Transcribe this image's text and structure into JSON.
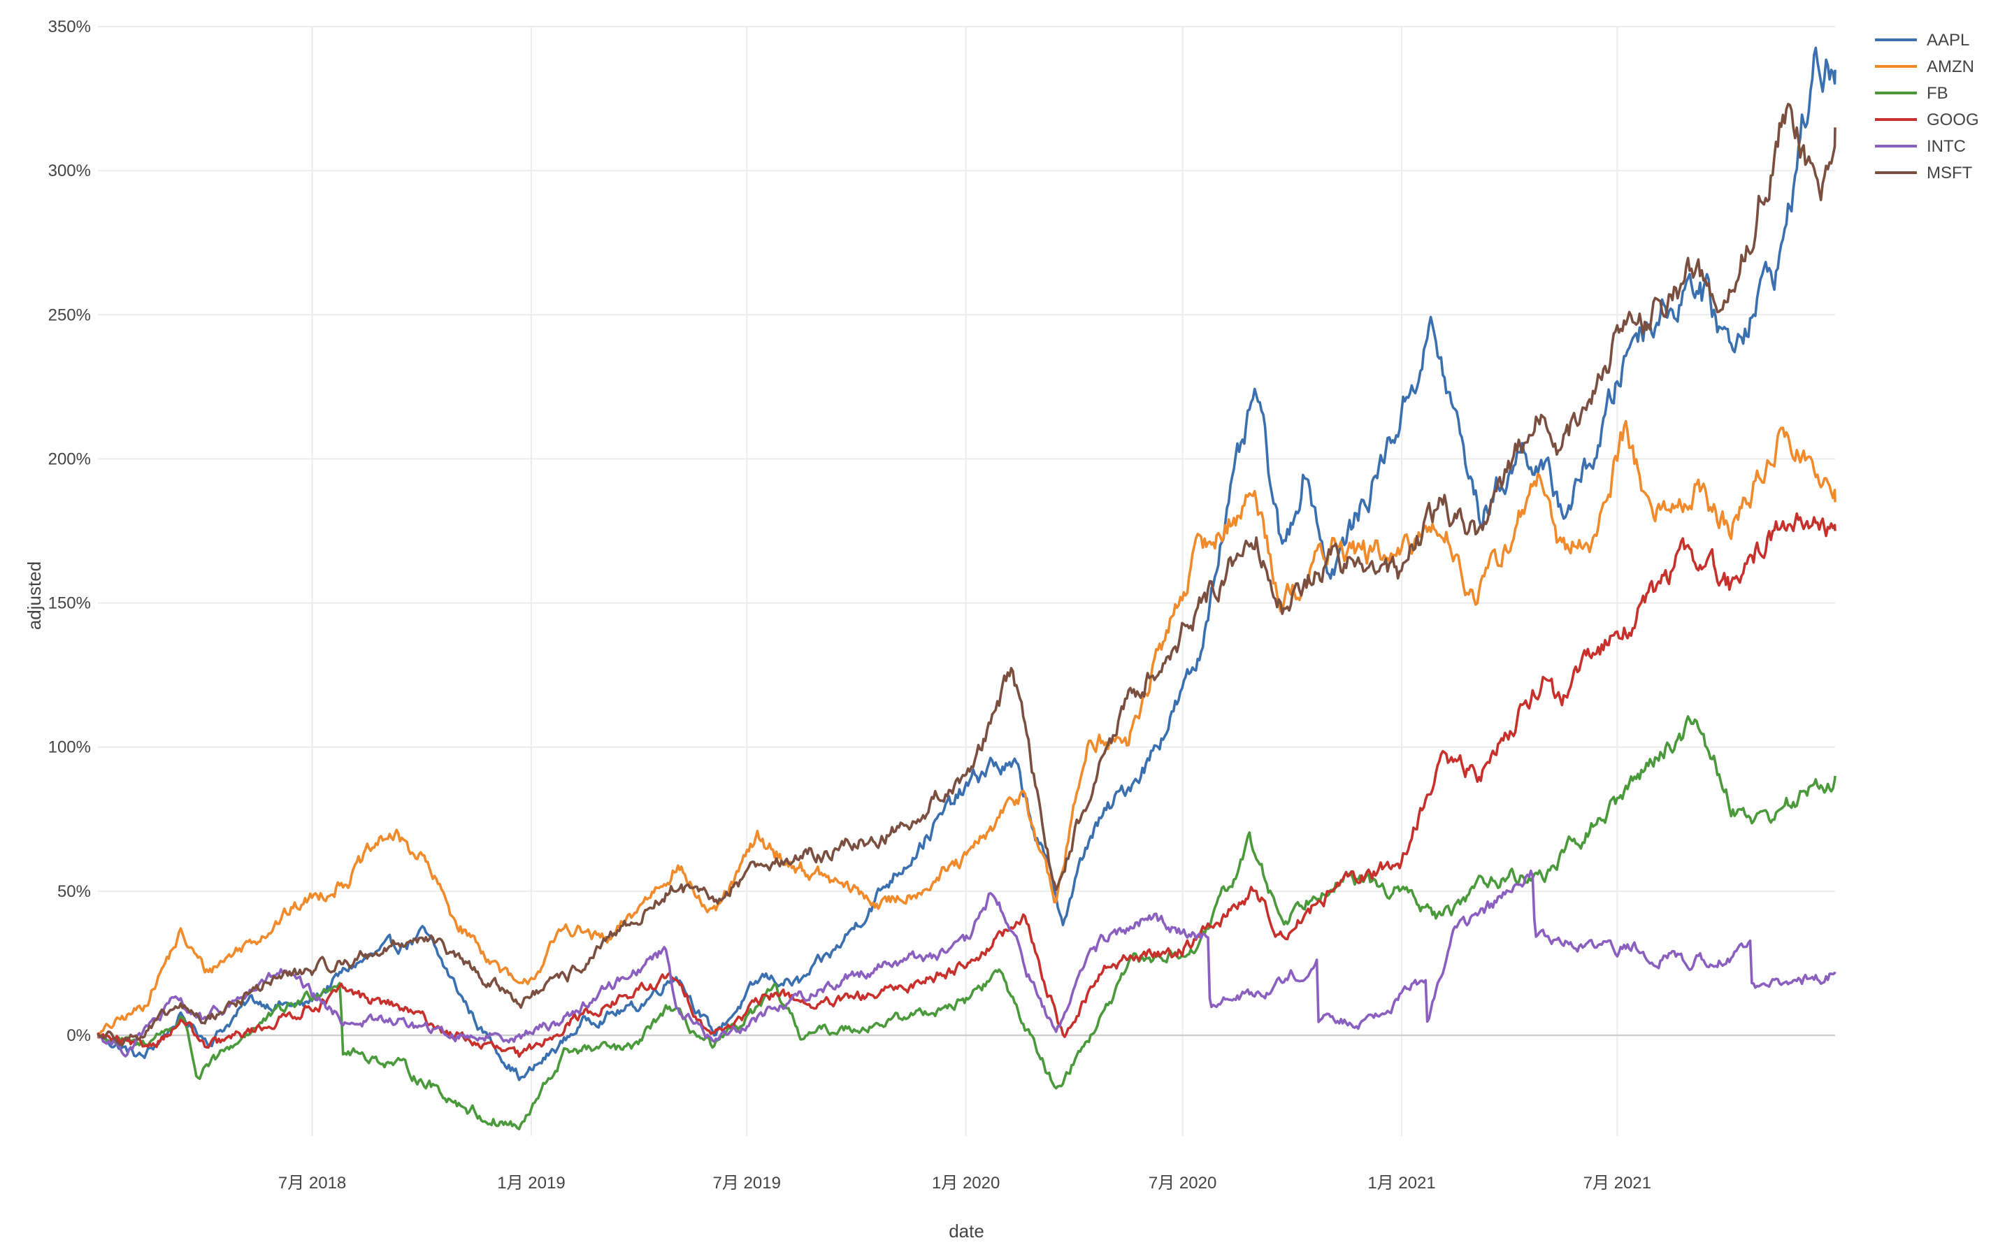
{
  "chart_data": {
    "type": "line",
    "title": "",
    "xlabel": "date",
    "ylabel": "adjusted",
    "x_range": [
      "2018-01-02",
      "2021-12-31"
    ],
    "y_range": [
      -0.45,
      3.5
    ],
    "y_tick_format": "percent",
    "y_ticks": [
      0,
      0.5,
      1.0,
      1.5,
      2.0,
      2.5,
      3.0,
      3.5
    ],
    "y_tick_labels": [
      "0%",
      "50%",
      "100%",
      "150%",
      "200%",
      "250%",
      "300%",
      "350%"
    ],
    "x_ticks": [
      "2018-07-01",
      "2019-01-01",
      "2019-07-01",
      "2020-01-01",
      "2020-07-01",
      "2021-01-01",
      "2021-07-01"
    ],
    "x_tick_labels": [
      "7月 2018",
      "1月 2019",
      "7月 2019",
      "1月 2020",
      "7月 2020",
      "1月 2021",
      "7月 2021"
    ],
    "grid": true,
    "legend_position": "top-right",
    "series": [
      {
        "name": "AAPL",
        "color": "#3a6fb0",
        "points": [
          [
            "2018-01-02",
            0.0
          ],
          [
            "2018-02-09",
            -0.08
          ],
          [
            "2018-03-12",
            0.06
          ],
          [
            "2018-04-06",
            -0.02
          ],
          [
            "2018-05-10",
            0.12
          ],
          [
            "2018-06-25",
            0.1
          ],
          [
            "2018-08-03",
            0.24
          ],
          [
            "2018-10-03",
            0.35
          ],
          [
            "2018-11-20",
            0.02
          ],
          [
            "2018-12-24",
            -0.15
          ],
          [
            "2019-01-03",
            -0.12
          ],
          [
            "2019-02-15",
            0.05
          ],
          [
            "2019-04-01",
            0.1
          ],
          [
            "2019-05-03",
            0.22
          ],
          [
            "2019-06-03",
            0.0
          ],
          [
            "2019-07-15",
            0.2
          ],
          [
            "2019-08-15",
            0.18
          ],
          [
            "2019-09-15",
            0.3
          ],
          [
            "2019-10-31",
            0.55
          ],
          [
            "2019-12-31",
            0.85
          ],
          [
            "2020-01-22",
            0.94
          ],
          [
            "2020-02-12",
            0.92
          ],
          [
            "2020-03-23",
            0.4
          ],
          [
            "2020-04-15",
            0.7
          ],
          [
            "2020-06-01",
            0.95
          ],
          [
            "2020-07-15",
            1.3
          ],
          [
            "2020-07-31",
            1.7
          ],
          [
            "2020-09-01",
            2.22
          ],
          [
            "2020-09-23",
            1.65
          ],
          [
            "2020-10-12",
            1.98
          ],
          [
            "2020-11-02",
            1.6
          ],
          [
            "2020-12-01",
            1.85
          ],
          [
            "2020-12-31",
            2.15
          ],
          [
            "2021-01-26",
            2.45
          ],
          [
            "2021-03-08",
            1.8
          ],
          [
            "2021-04-15",
            2.05
          ],
          [
            "2021-05-18",
            1.82
          ],
          [
            "2021-06-15",
            2.05
          ],
          [
            "2021-07-15",
            2.45
          ],
          [
            "2021-08-20",
            2.55
          ],
          [
            "2021-09-01",
            2.65
          ],
          [
            "2021-10-04",
            2.4
          ],
          [
            "2021-11-15",
            2.7
          ],
          [
            "2021-12-13",
            3.35
          ],
          [
            "2021-12-31",
            3.35
          ]
        ]
      },
      {
        "name": "AMZN",
        "color": "#f08a2a",
        "points": [
          [
            "2018-01-02",
            0.0
          ],
          [
            "2018-02-09",
            0.1
          ],
          [
            "2018-03-12",
            0.35
          ],
          [
            "2018-04-03",
            0.22
          ],
          [
            "2018-06-20",
            0.45
          ],
          [
            "2018-08-01",
            0.55
          ],
          [
            "2018-09-04",
            0.7
          ],
          [
            "2018-10-01",
            0.62
          ],
          [
            "2018-10-29",
            0.4
          ],
          [
            "2018-12-24",
            0.15
          ],
          [
            "2019-01-31",
            0.38
          ],
          [
            "2019-03-08",
            0.32
          ],
          [
            "2019-05-03",
            0.6
          ],
          [
            "2019-06-03",
            0.4
          ],
          [
            "2019-07-10",
            0.68
          ],
          [
            "2019-08-05",
            0.6
          ],
          [
            "2019-10-25",
            0.45
          ],
          [
            "2019-12-31",
            0.6
          ],
          [
            "2020-02-19",
            0.85
          ],
          [
            "2020-03-16",
            0.45
          ],
          [
            "2020-04-14",
            1.05
          ],
          [
            "2020-05-15",
            1.0
          ],
          [
            "2020-07-10",
            1.65
          ],
          [
            "2020-08-31",
            1.88
          ],
          [
            "2020-09-23",
            1.5
          ],
          [
            "2020-11-03",
            1.7
          ],
          [
            "2020-12-31",
            1.65
          ],
          [
            "2021-02-03",
            1.8
          ],
          [
            "2021-03-05",
            1.5
          ],
          [
            "2021-04-29",
            1.95
          ],
          [
            "2021-05-12",
            1.65
          ],
          [
            "2021-06-15",
            1.75
          ],
          [
            "2021-07-08",
            2.12
          ],
          [
            "2021-07-30",
            1.8
          ],
          [
            "2021-09-07",
            1.9
          ],
          [
            "2021-10-04",
            1.75
          ],
          [
            "2021-11-19",
            2.1
          ],
          [
            "2021-12-31",
            1.85
          ]
        ]
      },
      {
        "name": "FB",
        "color": "#4a9a3c",
        "points": [
          [
            "2018-01-02",
            0.0
          ],
          [
            "2018-02-05",
            -0.04
          ],
          [
            "2018-03-16",
            0.06
          ],
          [
            "2018-03-27",
            -0.15
          ],
          [
            "2018-05-10",
            0.02
          ],
          [
            "2018-07-25",
            0.2
          ],
          [
            "2018-07-26",
            -0.05
          ],
          [
            "2018-09-10",
            -0.1
          ],
          [
            "2018-11-20",
            -0.28
          ],
          [
            "2018-12-24",
            -0.32
          ],
          [
            "2019-01-31",
            -0.05
          ],
          [
            "2019-03-28",
            -0.05
          ],
          [
            "2019-04-25",
            0.1
          ],
          [
            "2019-06-03",
            -0.05
          ],
          [
            "2019-07-25",
            0.15
          ],
          [
            "2019-08-15",
            0.0
          ],
          [
            "2019-10-31",
            0.05
          ],
          [
            "2019-12-31",
            0.12
          ],
          [
            "2020-01-29",
            0.22
          ],
          [
            "2020-03-16",
            -0.18
          ],
          [
            "2020-04-15",
            0.0
          ],
          [
            "2020-05-20",
            0.25
          ],
          [
            "2020-07-15",
            0.3
          ],
          [
            "2020-08-26",
            0.67
          ],
          [
            "2020-09-23",
            0.4
          ],
          [
            "2020-11-03",
            0.55
          ],
          [
            "2020-12-31",
            0.5
          ],
          [
            "2021-02-04",
            0.4
          ],
          [
            "2021-03-15",
            0.55
          ],
          [
            "2021-04-29",
            0.55
          ],
          [
            "2021-06-29",
            0.8
          ],
          [
            "2021-07-28",
            0.95
          ],
          [
            "2021-09-07",
            1.1
          ],
          [
            "2021-10-04",
            0.8
          ],
          [
            "2021-11-01",
            0.75
          ],
          [
            "2021-12-31",
            0.9
          ]
        ]
      },
      {
        "name": "GOOG",
        "color": "#c8302b",
        "points": [
          [
            "2018-01-02",
            0.0
          ],
          [
            "2018-02-08",
            -0.05
          ],
          [
            "2018-03-16",
            0.05
          ],
          [
            "2018-04-02",
            -0.05
          ],
          [
            "2018-06-01",
            0.05
          ],
          [
            "2018-07-27",
            0.15
          ],
          [
            "2018-09-10",
            0.1
          ],
          [
            "2018-10-29",
            0.0
          ],
          [
            "2018-12-24",
            -0.08
          ],
          [
            "2019-02-01",
            0.05
          ],
          [
            "2019-04-29",
            0.2
          ],
          [
            "2019-06-03",
            0.0
          ],
          [
            "2019-07-26",
            0.15
          ],
          [
            "2019-09-01",
            0.1
          ],
          [
            "2019-10-31",
            0.15
          ],
          [
            "2019-12-31",
            0.25
          ],
          [
            "2020-02-19",
            0.4
          ],
          [
            "2020-03-23",
            0.0
          ],
          [
            "2020-04-30",
            0.25
          ],
          [
            "2020-07-01",
            0.3
          ],
          [
            "2020-08-31",
            0.5
          ],
          [
            "2020-09-23",
            0.35
          ],
          [
            "2020-11-03",
            0.5
          ],
          [
            "2020-12-31",
            0.6
          ],
          [
            "2021-02-03",
            0.95
          ],
          [
            "2021-03-08",
            0.9
          ],
          [
            "2021-04-29",
            1.25
          ],
          [
            "2021-05-12",
            1.15
          ],
          [
            "2021-06-30",
            1.4
          ],
          [
            "2021-07-27",
            1.5
          ],
          [
            "2021-09-01",
            1.7
          ],
          [
            "2021-10-04",
            1.55
          ],
          [
            "2021-11-18",
            1.8
          ],
          [
            "2021-12-31",
            1.75
          ]
        ]
      },
      {
        "name": "INTC",
        "color": "#8a5fbf",
        "points": [
          [
            "2018-01-02",
            0.0
          ],
          [
            "2018-01-26",
            -0.05
          ],
          [
            "2018-03-09",
            0.12
          ],
          [
            "2018-04-02",
            0.05
          ],
          [
            "2018-06-05",
            0.22
          ],
          [
            "2018-07-27",
            0.05
          ],
          [
            "2018-09-10",
            0.05
          ],
          [
            "2018-10-24",
            0.0
          ],
          [
            "2018-12-24",
            0.0
          ],
          [
            "2019-01-25",
            0.05
          ],
          [
            "2019-04-24",
            0.3
          ],
          [
            "2019-05-03",
            0.1
          ],
          [
            "2019-06-03",
            -0.02
          ],
          [
            "2019-07-26",
            0.1
          ],
          [
            "2019-10-24",
            0.25
          ],
          [
            "2019-12-31",
            0.3
          ],
          [
            "2020-01-24",
            0.5
          ],
          [
            "2020-03-16",
            0.0
          ],
          [
            "2020-04-15",
            0.3
          ],
          [
            "2020-06-01",
            0.4
          ],
          [
            "2020-07-23",
            0.35
          ],
          [
            "2020-07-24",
            0.1
          ],
          [
            "2020-09-04",
            0.15
          ],
          [
            "2020-10-22",
            0.25
          ],
          [
            "2020-10-23",
            0.05
          ],
          [
            "2020-12-01",
            0.05
          ],
          [
            "2021-01-21",
            0.2
          ],
          [
            "2021-01-22",
            0.05
          ],
          [
            "2021-02-12",
            0.35
          ],
          [
            "2021-04-21",
            0.55
          ],
          [
            "2021-04-23",
            0.35
          ],
          [
            "2021-06-01",
            0.3
          ],
          [
            "2021-07-23",
            0.3
          ],
          [
            "2021-09-01",
            0.25
          ],
          [
            "2021-10-21",
            0.3
          ],
          [
            "2021-10-22",
            0.15
          ],
          [
            "2021-12-31",
            0.22
          ]
        ]
      },
      {
        "name": "MSFT",
        "color": "#7b4f3f",
        "points": [
          [
            "2018-01-02",
            0.0
          ],
          [
            "2018-02-08",
            0.0
          ],
          [
            "2018-03-12",
            0.1
          ],
          [
            "2018-04-02",
            0.05
          ],
          [
            "2018-06-01",
            0.2
          ],
          [
            "2018-07-27",
            0.25
          ],
          [
            "2018-10-03",
            0.35
          ],
          [
            "2018-11-20",
            0.2
          ],
          [
            "2018-12-24",
            0.12
          ],
          [
            "2019-01-31",
            0.2
          ],
          [
            "2019-03-29",
            0.4
          ],
          [
            "2019-05-03",
            0.52
          ],
          [
            "2019-06-03",
            0.45
          ],
          [
            "2019-07-15",
            0.62
          ],
          [
            "2019-08-05",
            0.6
          ],
          [
            "2019-10-31",
            0.7
          ],
          [
            "2019-12-31",
            0.9
          ],
          [
            "2020-02-10",
            1.25
          ],
          [
            "2020-03-16",
            0.5
          ],
          [
            "2020-04-14",
            0.85
          ],
          [
            "2020-05-15",
            1.15
          ],
          [
            "2020-07-10",
            1.45
          ],
          [
            "2020-08-31",
            1.75
          ],
          [
            "2020-09-23",
            1.5
          ],
          [
            "2020-11-03",
            1.65
          ],
          [
            "2020-12-31",
            1.6
          ],
          [
            "2021-02-03",
            1.85
          ],
          [
            "2021-03-05",
            1.75
          ],
          [
            "2021-04-26",
            2.15
          ],
          [
            "2021-05-12",
            2.0
          ],
          [
            "2021-06-30",
            2.4
          ],
          [
            "2021-08-02",
            2.5
          ],
          [
            "2021-09-01",
            2.65
          ],
          [
            "2021-10-04",
            2.55
          ],
          [
            "2021-11-19",
            3.2
          ],
          [
            "2021-12-20",
            2.95
          ],
          [
            "2021-12-31",
            3.15
          ]
        ]
      }
    ]
  }
}
